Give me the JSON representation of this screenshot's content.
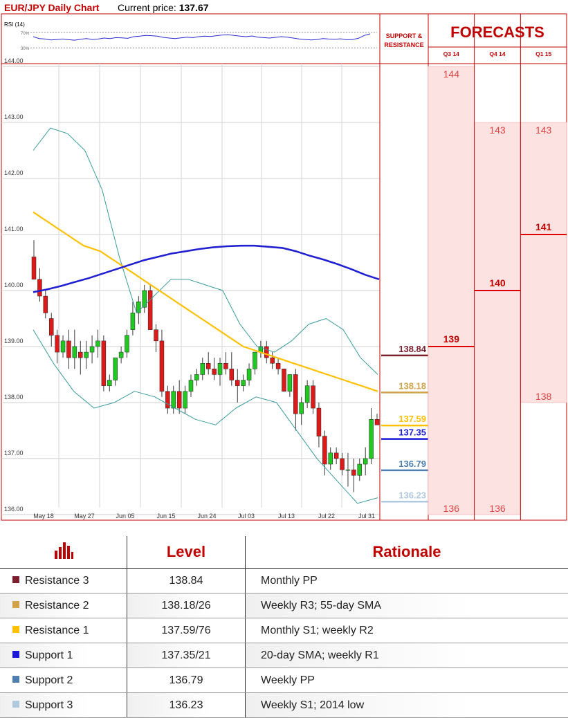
{
  "header": {
    "title": "EUR/JPY Daily Chart",
    "price_label": "Current price:",
    "price_value": "137.67"
  },
  "rsi": {
    "label": "RSI (14)",
    "levels": [
      70,
      30
    ],
    "tick_labels": [
      "70%",
      "30%"
    ],
    "values": [
      50,
      42,
      40,
      36,
      38,
      40,
      37,
      35,
      39,
      42,
      38,
      40,
      44,
      42,
      46,
      45,
      43,
      50,
      52,
      55,
      54,
      52,
      47,
      44,
      42,
      45,
      48,
      46,
      50,
      52,
      51,
      54,
      57,
      58,
      55,
      52,
      50,
      53,
      48,
      46,
      44,
      47,
      50,
      48,
      44,
      40,
      38,
      36,
      38,
      42,
      40,
      39,
      41,
      37,
      38,
      43,
      55,
      62
    ]
  },
  "sr_header": "SUPPORT &\nRESISTANCE",
  "forecasts": {
    "title": "FORECASTS",
    "periods": [
      "Q3 14",
      "Q4 14",
      "Q1 15"
    ],
    "columns": [
      {
        "period": "Q3 14",
        "high": 144,
        "mid": 139,
        "low": 136,
        "labels": [
          "144",
          "139",
          "136"
        ]
      },
      {
        "period": "Q4 14",
        "high": 143,
        "mid": 140,
        "low": 136,
        "labels": [
          "143",
          "140",
          "136"
        ]
      },
      {
        "period": "Q1 15",
        "high": 143,
        "mid": 141,
        "low": 138,
        "labels": [
          "143",
          "141",
          "138"
        ]
      }
    ]
  },
  "chart_data": {
    "type": "candlestick",
    "title": "EUR/JPY Daily Chart",
    "ylim": [
      135.9,
      144.05
    ],
    "yticks": [
      136,
      137,
      138,
      139,
      140,
      141,
      142,
      143,
      144
    ],
    "ytick_labels": [
      "136.00",
      "137.00",
      "138.00",
      "139.00",
      "140.00",
      "141.00",
      "142.00",
      "143.00",
      "144.00"
    ],
    "x_labels": [
      "May 18",
      "May 27",
      "Jun 05",
      "Jun 15",
      "Jun 24",
      "Jul 03",
      "Jul 13",
      "Jul 22",
      "Jul 31"
    ],
    "grid": true,
    "candles": [
      [
        140.6,
        140.9,
        140.2,
        140.2
      ],
      [
        140.2,
        140.4,
        139.8,
        139.9
      ],
      [
        139.9,
        140.0,
        139.5,
        139.6
      ],
      [
        139.5,
        139.6,
        139.0,
        139.2
      ],
      [
        139.2,
        139.3,
        138.7,
        138.9
      ],
      [
        138.9,
        139.2,
        138.8,
        139.1
      ],
      [
        139.1,
        139.3,
        138.6,
        138.8
      ],
      [
        138.8,
        139.3,
        138.6,
        139.0
      ],
      [
        138.9,
        139.1,
        138.5,
        138.8
      ],
      [
        138.8,
        139.1,
        138.6,
        138.9
      ],
      [
        138.9,
        139.2,
        138.7,
        139.0
      ],
      [
        139.0,
        139.3,
        138.8,
        139.1
      ],
      [
        139.1,
        139.2,
        138.2,
        138.3
      ],
      [
        138.3,
        138.5,
        138.2,
        138.4
      ],
      [
        138.4,
        138.8,
        138.3,
        138.8
      ],
      [
        138.8,
        139.0,
        138.7,
        138.9
      ],
      [
        138.9,
        139.3,
        138.8,
        139.2
      ],
      [
        139.3,
        139.8,
        139.2,
        139.6
      ],
      [
        139.6,
        139.9,
        139.4,
        139.8
      ],
      [
        139.7,
        140.1,
        139.6,
        140.0
      ],
      [
        140.0,
        140.1,
        139.3,
        139.3
      ],
      [
        139.3,
        139.4,
        138.9,
        139.1
      ],
      [
        139.1,
        139.3,
        138.1,
        138.2
      ],
      [
        138.2,
        138.3,
        137.8,
        137.9
      ],
      [
        137.9,
        138.3,
        137.8,
        138.2
      ],
      [
        138.2,
        138.4,
        137.8,
        137.9
      ],
      [
        137.9,
        138.3,
        137.8,
        138.2
      ],
      [
        138.2,
        138.5,
        138.1,
        138.4
      ],
      [
        138.4,
        138.6,
        138.3,
        138.5
      ],
      [
        138.5,
        138.8,
        138.4,
        138.7
      ],
      [
        138.7,
        138.9,
        138.5,
        138.6
      ],
      [
        138.6,
        138.8,
        138.4,
        138.5
      ],
      [
        138.5,
        138.8,
        138.3,
        138.7
      ],
      [
        138.7,
        138.9,
        138.5,
        138.6
      ],
      [
        138.6,
        138.9,
        138.3,
        138.4
      ],
      [
        138.4,
        138.6,
        138.0,
        138.3
      ],
      [
        138.3,
        138.5,
        138.2,
        138.4
      ],
      [
        138.4,
        138.7,
        138.3,
        138.6
      ],
      [
        138.6,
        138.9,
        138.5,
        138.9
      ],
      [
        138.9,
        139.1,
        138.8,
        139.0
      ],
      [
        139.0,
        139.1,
        138.7,
        138.8
      ],
      [
        138.8,
        138.9,
        138.6,
        138.7
      ],
      [
        138.7,
        138.8,
        138.5,
        138.6
      ],
      [
        138.6,
        138.6,
        138.2,
        138.2
      ],
      [
        138.2,
        138.5,
        138.1,
        138.5
      ],
      [
        138.5,
        138.6,
        137.5,
        137.8
      ],
      [
        137.8,
        138.1,
        137.6,
        138.0
      ],
      [
        138.0,
        138.4,
        137.9,
        138.3
      ],
      [
        138.3,
        138.4,
        137.8,
        137.9
      ],
      [
        137.9,
        138.0,
        137.2,
        137.4
      ],
      [
        137.4,
        137.5,
        136.7,
        136.9
      ],
      [
        136.9,
        137.2,
        136.8,
        137.1
      ],
      [
        137.1,
        137.2,
        136.9,
        137.0
      ],
      [
        137.0,
        137.1,
        136.7,
        136.8
      ],
      [
        136.8,
        137.1,
        136.5,
        136.8
      ],
      [
        136.8,
        137.0,
        136.4,
        136.7
      ],
      [
        136.7,
        137.0,
        136.6,
        136.9
      ],
      [
        136.9,
        137.2,
        136.7,
        137.0
      ],
      [
        137.0,
        137.9,
        136.9,
        137.7
      ],
      [
        137.7,
        137.8,
        137.6,
        137.6
      ]
    ],
    "series": [
      {
        "name": "",
        "color": "#ffc000",
        "values": [
          141.4,
          141.3,
          141.2,
          141.1,
          141.0,
          140.9,
          140.8,
          140.75,
          140.7,
          140.6,
          140.5,
          140.4,
          140.3,
          140.2,
          140.1,
          140.0,
          139.9,
          139.8,
          139.7,
          139.6,
          139.5,
          139.4,
          139.3,
          139.2,
          139.1,
          139.0,
          138.95,
          138.9,
          138.85,
          138.8,
          138.75,
          138.7,
          138.65,
          138.6,
          138.55,
          138.5,
          138.45,
          138.4,
          138.35,
          138.3,
          138.25,
          138.2
        ]
      },
      {
        "name": "",
        "color": "#2020d0",
        "values": [
          139.97,
          140.02,
          140.08,
          140.15,
          140.22,
          140.3,
          140.38,
          140.46,
          140.54,
          140.6,
          140.66,
          140.7,
          140.74,
          140.77,
          140.79,
          140.8,
          140.8,
          140.78,
          140.76,
          140.7,
          140.62,
          140.55,
          140.47,
          140.38,
          140.28,
          140.2
        ]
      },
      {
        "name": "",
        "color": "#3a9a9a",
        "values": [
          142.5,
          142.9,
          142.8,
          142.5,
          141.8,
          140.6,
          139.6,
          139.9,
          140.2,
          140.2,
          140.1,
          140.0,
          139.4,
          139.0,
          138.9,
          139.1,
          139.4,
          139.5,
          139.3,
          138.8,
          138.5
        ]
      },
      {
        "name": "",
        "color": "#3a9a9a",
        "values": [
          139.3,
          138.7,
          138.2,
          137.9,
          138.0,
          138.2,
          138.1,
          137.9,
          137.7,
          137.6,
          137.9,
          138.1,
          138.0,
          137.5,
          137.0,
          136.6,
          136.2,
          136.3
        ]
      }
    ]
  },
  "levels": [
    {
      "name": "Resistance 3",
      "value": 138.84,
      "label": "138.84",
      "color": "#7b1e2e",
      "table_value": "138.84",
      "rationale": "Monthly PP"
    },
    {
      "name": "Resistance 2",
      "value": 138.18,
      "label": "138.18",
      "color": "#d1a24a",
      "table_value": "138.18/26",
      "rationale": "Weekly R3; 55-day SMA"
    },
    {
      "name": "Resistance 1",
      "value": 137.59,
      "label": "137.59",
      "color": "#ffc000",
      "table_value": "137.59/76",
      "rationale": "Monthly S1; weekly R2"
    },
    {
      "name": "Support 1",
      "value": 137.35,
      "label": "137.35",
      "color": "#1a1ad8",
      "table_value": "137.35/21",
      "rationale": "20-day SMA; weekly R1"
    },
    {
      "name": "Support 2",
      "value": 136.79,
      "label": "136.79",
      "color": "#4f7fb0",
      "table_value": "136.79",
      "rationale": "Weekly PP"
    },
    {
      "name": "Support 3",
      "value": 136.23,
      "label": "136.23",
      "color": "#b0c8e0",
      "table_value": "136.23",
      "rationale": "Weekly S1; 2014 low"
    }
  ],
  "table": {
    "headers": [
      "",
      "Level",
      "Rationale"
    ],
    "icon": "bar-chart-icon",
    "icon_color": "#c00000"
  }
}
